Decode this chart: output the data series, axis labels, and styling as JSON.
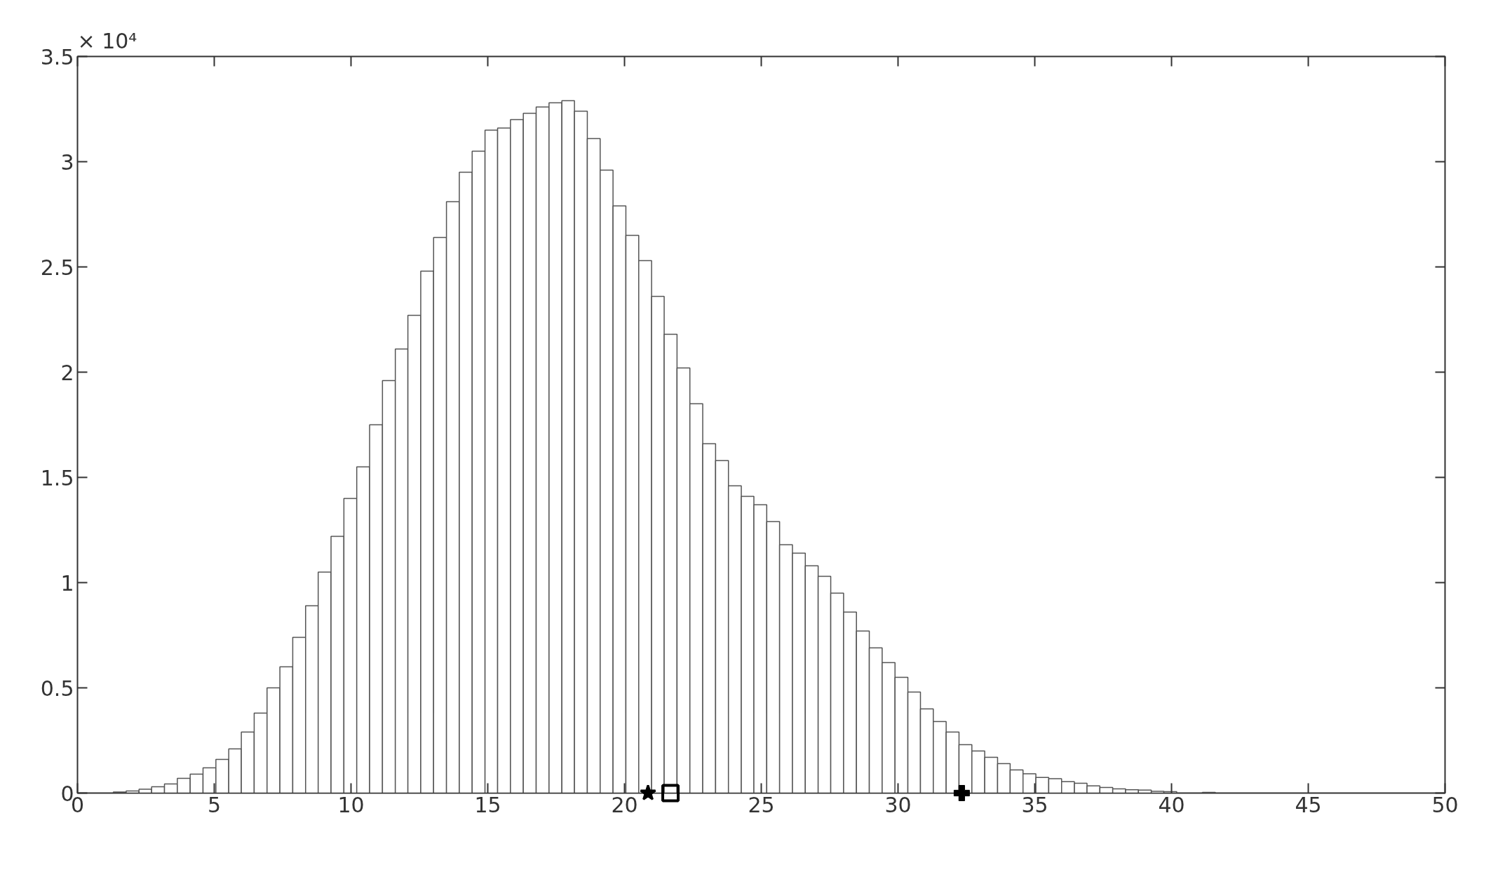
{
  "chart_data": {
    "type": "histogram",
    "bins": [
      0.84,
      1.31,
      1.78,
      2.25,
      2.71,
      3.18,
      3.65,
      4.12,
      4.59,
      5.06,
      5.53,
      5.99,
      6.46,
      6.93,
      7.4,
      7.87,
      8.34,
      8.8,
      9.27,
      9.74,
      10.21,
      10.68,
      11.15,
      11.62,
      12.08,
      12.55,
      13.02,
      13.49,
      13.96,
      14.43,
      14.9,
      15.36,
      15.83,
      16.3,
      16.77,
      17.24,
      17.71,
      18.17,
      18.64,
      19.11,
      19.58,
      20.05,
      20.52,
      20.99,
      21.45,
      21.92,
      22.39,
      22.86,
      23.33,
      23.8,
      24.27,
      24.73,
      25.2,
      25.67,
      26.14,
      26.61,
      27.08,
      27.54,
      28.01,
      28.48,
      28.95,
      29.42,
      29.89,
      30.36,
      30.82,
      31.29,
      31.76,
      32.23,
      32.7,
      33.17,
      33.64,
      34.1,
      34.57,
      35.04,
      35.51,
      35.98,
      36.45,
      36.91,
      37.38,
      37.85,
      38.32,
      38.79,
      39.26,
      39.72,
      40.19,
      40.66,
      41.13,
      41.6,
      42.06,
      42.53,
      43.0,
      43.47
    ],
    "values": [
      null,
      0.005,
      0.01,
      0.018,
      0.03,
      0.043,
      0.07,
      0.09,
      0.12,
      0.16,
      0.21,
      0.29,
      0.38,
      0.5,
      0.6,
      0.74,
      0.89,
      1.05,
      1.22,
      1.4,
      1.55,
      1.75,
      1.96,
      2.11,
      2.27,
      2.48,
      2.64,
      2.81,
      2.95,
      3.05,
      3.15,
      3.16,
      3.2,
      3.23,
      3.26,
      3.28,
      3.29,
      3.24,
      3.11,
      2.96,
      2.79,
      2.65,
      2.53,
      2.36,
      2.18,
      2.02,
      1.85,
      1.66,
      1.58,
      1.46,
      1.41,
      1.37,
      1.29,
      1.18,
      1.14,
      1.08,
      1.03,
      0.95,
      0.86,
      0.77,
      0.69,
      0.62,
      0.55,
      0.48,
      0.4,
      0.34,
      0.29,
      0.23,
      0.2,
      0.17,
      0.14,
      0.11,
      0.092,
      0.074,
      0.068,
      0.054,
      0.047,
      0.034,
      0.027,
      0.02,
      0.016,
      0.014,
      0.008,
      0.007,
      null,
      null,
      0.003,
      null,
      null,
      null,
      null
    ],
    "color": "#ffffff",
    "series": [
      {
        "type": "scatter",
        "x": [
          20.86
        ],
        "values": [
          0
        ],
        "marker": "star",
        "color": "#000000"
      },
      {
        "type": "scatter",
        "x": [
          21.68
        ],
        "values": [
          0
        ],
        "marker": "square",
        "color": "#000000"
      },
      {
        "type": "scatter",
        "x": [
          32.33
        ],
        "values": [
          0
        ],
        "marker": "cross",
        "color": "#000000"
      }
    ],
    "xlim": [
      0,
      50
    ],
    "xticks": [
      0,
      5,
      10,
      15,
      20,
      25,
      30,
      35,
      40,
      45,
      50
    ],
    "ylim": [
      0,
      3.5
    ],
    "yticks": [
      0,
      0.5,
      1,
      1.5,
      2,
      2.5,
      3,
      3.5
    ],
    "annotations": [
      "× 10⁴"
    ]
  }
}
